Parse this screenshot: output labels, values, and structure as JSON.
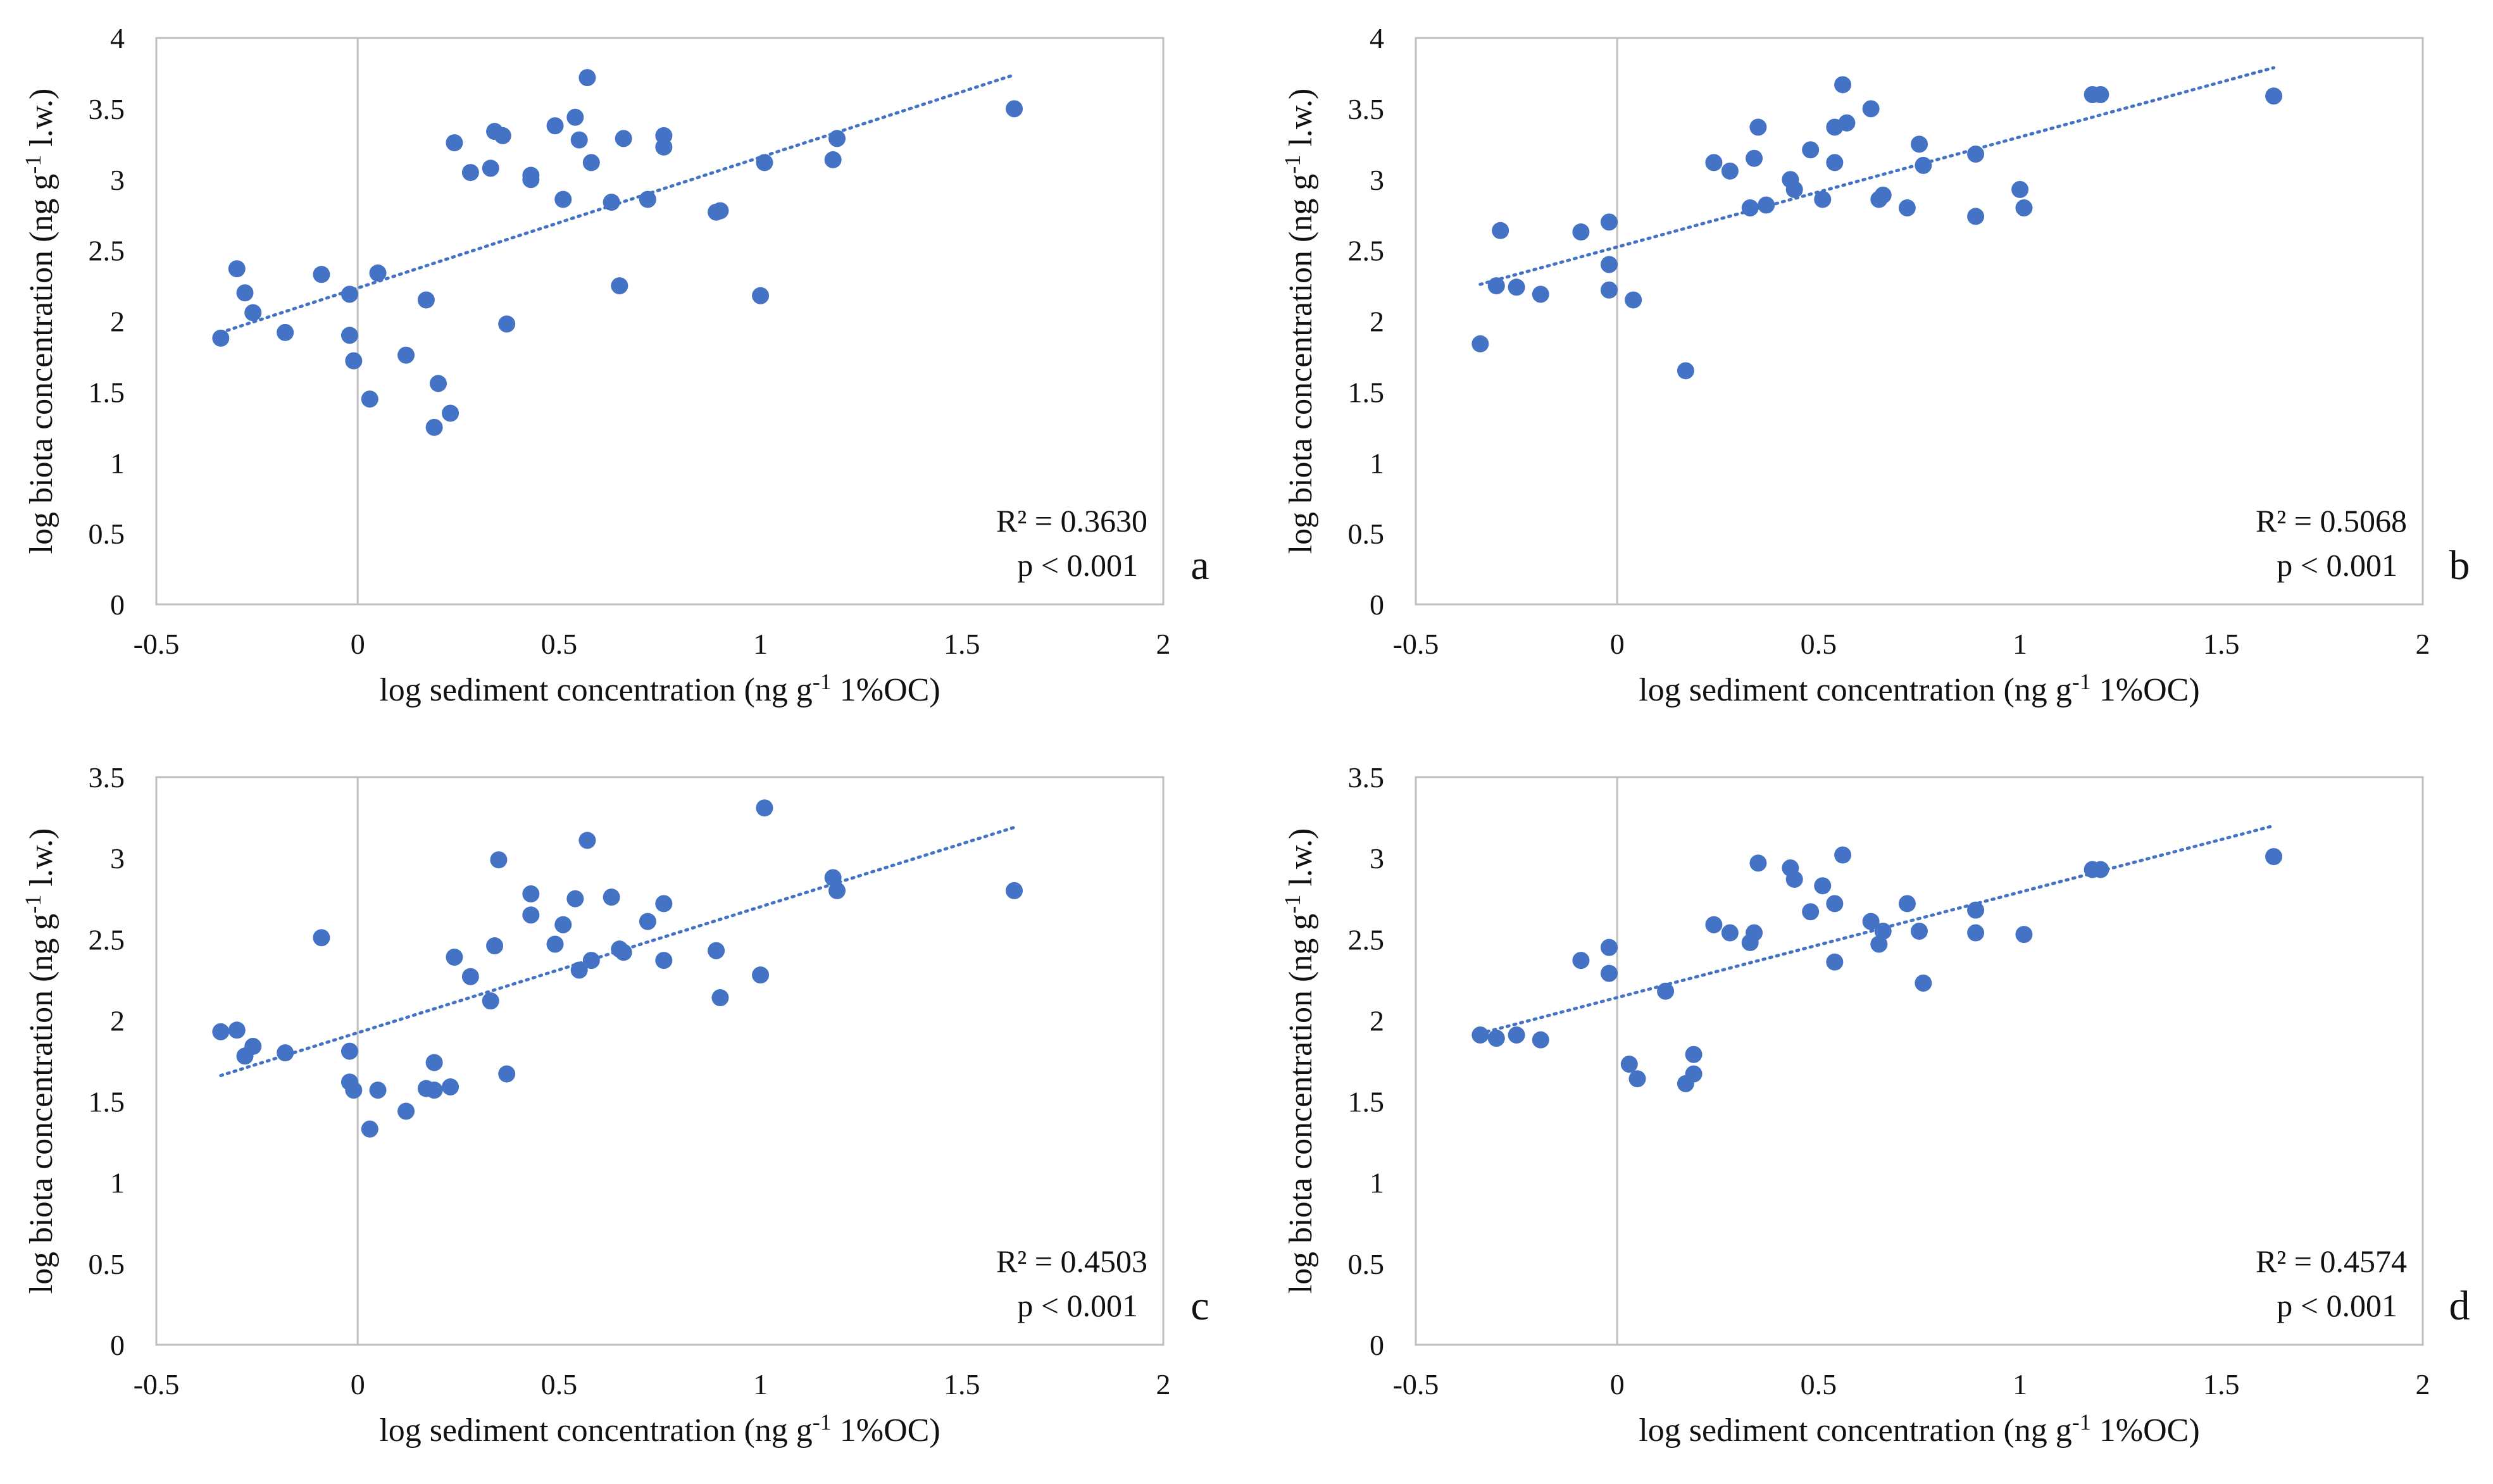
{
  "figure": {
    "marker_color": "#4472C4",
    "trendline_color": "#4472C4",
    "axis_color": "#BFBFBF"
  },
  "chart_data": [
    {
      "type": "scatter",
      "panel_label": "a",
      "xlabel": "log sediment concentration (ng g-1 1%OC)",
      "ylabel": "log biota concentration (ng g-1 l.w.)",
      "xlim": [
        -0.5,
        2
      ],
      "ylim": [
        0,
        4
      ],
      "xticks": [
        -0.5,
        0,
        0.5,
        1,
        1.5,
        2
      ],
      "xtick_labels": [
        "-0.5",
        "0",
        "0.5",
        "1",
        "1.5",
        "2"
      ],
      "yticks": [
        0,
        0.5,
        1,
        1.5,
        2,
        2.5,
        3,
        3.5,
        4
      ],
      "ytick_labels": [
        "0",
        "0.5",
        "1",
        "1.5",
        "2",
        "2.5",
        "3",
        "3.5",
        "4"
      ],
      "r2_text": "R² = 0.3630",
      "p_text": "p < 0.001",
      "trendline": {
        "x": [
          -0.34,
          1.63
        ],
        "y": [
          1.92,
          3.74
        ]
      },
      "points": [
        [
          -0.34,
          1.88
        ],
        [
          -0.3,
          2.37
        ],
        [
          -0.28,
          2.2
        ],
        [
          -0.26,
          2.06
        ],
        [
          -0.18,
          1.92
        ],
        [
          -0.09,
          2.33
        ],
        [
          -0.02,
          2.19
        ],
        [
          -0.02,
          1.9
        ],
        [
          -0.01,
          1.72
        ],
        [
          0.03,
          1.45
        ],
        [
          0.05,
          2.34
        ],
        [
          0.12,
          1.76
        ],
        [
          0.17,
          2.15
        ],
        [
          0.19,
          1.25
        ],
        [
          0.2,
          1.56
        ],
        [
          0.23,
          1.35
        ],
        [
          0.24,
          3.26
        ],
        [
          0.28,
          3.05
        ],
        [
          0.33,
          3.08
        ],
        [
          0.34,
          3.34
        ],
        [
          0.36,
          3.31
        ],
        [
          0.37,
          1.98
        ],
        [
          0.43,
          3.03
        ],
        [
          0.43,
          3.0
        ],
        [
          0.49,
          3.38
        ],
        [
          0.51,
          2.86
        ],
        [
          0.54,
          3.44
        ],
        [
          0.55,
          3.28
        ],
        [
          0.57,
          3.72
        ],
        [
          0.58,
          3.12
        ],
        [
          0.63,
          2.84
        ],
        [
          0.65,
          2.25
        ],
        [
          0.66,
          3.29
        ],
        [
          0.72,
          2.86
        ],
        [
          0.76,
          3.31
        ],
        [
          0.76,
          3.23
        ],
        [
          0.89,
          2.77
        ],
        [
          0.9,
          2.78
        ],
        [
          1.0,
          2.18
        ],
        [
          1.01,
          3.12
        ],
        [
          1.18,
          3.14
        ],
        [
          1.19,
          3.29
        ],
        [
          1.63,
          3.5
        ]
      ]
    },
    {
      "type": "scatter",
      "panel_label": "b",
      "xlabel": "log sediment concentration (ng g-1 1%OC)",
      "ylabel": "log biota concentration (ng g-1 l.w.)",
      "xlim": [
        -0.5,
        2
      ],
      "ylim": [
        0,
        4
      ],
      "xticks": [
        -0.5,
        0,
        0.5,
        1,
        1.5,
        2
      ],
      "xtick_labels": [
        "-0.5",
        "0",
        "0.5",
        "1",
        "1.5",
        "2"
      ],
      "yticks": [
        0,
        0.5,
        1,
        1.5,
        2,
        2.5,
        3,
        3.5,
        4
      ],
      "ytick_labels": [
        "0",
        "0.5",
        "1",
        "1.5",
        "2",
        "2.5",
        "3",
        "3.5",
        "4"
      ],
      "r2_text": "R² = 0.5068",
      "p_text": "p < 0.001",
      "trendline": {
        "x": [
          -0.34,
          1.63
        ],
        "y": [
          2.26,
          3.79
        ]
      },
      "points": [
        [
          -0.34,
          1.84
        ],
        [
          -0.3,
          2.25
        ],
        [
          -0.29,
          2.64
        ],
        [
          -0.25,
          2.24
        ],
        [
          -0.19,
          2.19
        ],
        [
          -0.09,
          2.63
        ],
        [
          -0.02,
          2.7
        ],
        [
          -0.02,
          2.4
        ],
        [
          -0.02,
          2.22
        ],
        [
          0.04,
          2.15
        ],
        [
          0.17,
          1.65
        ],
        [
          0.24,
          3.12
        ],
        [
          0.28,
          3.06
        ],
        [
          0.33,
          2.8
        ],
        [
          0.34,
          3.15
        ],
        [
          0.35,
          3.37
        ],
        [
          0.37,
          2.82
        ],
        [
          0.43,
          3.0
        ],
        [
          0.44,
          2.93
        ],
        [
          0.48,
          3.21
        ],
        [
          0.51,
          2.86
        ],
        [
          0.54,
          3.37
        ],
        [
          0.54,
          3.12
        ],
        [
          0.56,
          3.67
        ],
        [
          0.57,
          3.4
        ],
        [
          0.63,
          3.5
        ],
        [
          0.65,
          2.86
        ],
        [
          0.66,
          2.89
        ],
        [
          0.72,
          2.8
        ],
        [
          0.75,
          3.25
        ],
        [
          0.76,
          3.1
        ],
        [
          0.89,
          3.18
        ],
        [
          0.89,
          2.74
        ],
        [
          1.0,
          2.93
        ],
        [
          1.01,
          2.8
        ],
        [
          1.18,
          3.6
        ],
        [
          1.2,
          3.6
        ],
        [
          1.63,
          3.59
        ]
      ]
    },
    {
      "type": "scatter",
      "panel_label": "c",
      "xlabel": "log sediment concentration (ng g-1 1%OC)",
      "ylabel": "log biota concentration (ng g-1 l.w.)",
      "xlim": [
        -0.5,
        2
      ],
      "ylim": [
        0,
        3.5
      ],
      "xticks": [
        -0.5,
        0,
        0.5,
        1,
        1.5,
        2
      ],
      "xtick_labels": [
        "-0.5",
        "0",
        "0.5",
        "1",
        "1.5",
        "2"
      ],
      "yticks": [
        0,
        0.5,
        1,
        1.5,
        2,
        2.5,
        3,
        3.5
      ],
      "ytick_labels": [
        "0",
        "0.5",
        "1",
        "1.5",
        "2",
        "2.5",
        "3",
        "3.5"
      ],
      "r2_text": "R² = 0.4503",
      "p_text": "p < 0.001",
      "trendline": {
        "x": [
          -0.34,
          1.63
        ],
        "y": [
          1.66,
          3.19
        ]
      },
      "points": [
        [
          -0.34,
          1.93
        ],
        [
          -0.3,
          1.94
        ],
        [
          -0.28,
          1.78
        ],
        [
          -0.26,
          1.84
        ],
        [
          -0.18,
          1.8
        ],
        [
          -0.09,
          2.51
        ],
        [
          -0.02,
          1.81
        ],
        [
          -0.02,
          1.62
        ],
        [
          -0.01,
          1.57
        ],
        [
          0.03,
          1.33
        ],
        [
          0.05,
          1.57
        ],
        [
          0.12,
          1.44
        ],
        [
          0.17,
          1.58
        ],
        [
          0.19,
          1.57
        ],
        [
          0.19,
          1.74
        ],
        [
          0.23,
          1.59
        ],
        [
          0.24,
          2.39
        ],
        [
          0.28,
          2.27
        ],
        [
          0.33,
          2.12
        ],
        [
          0.34,
          2.46
        ],
        [
          0.35,
          2.99
        ],
        [
          0.37,
          1.67
        ],
        [
          0.43,
          2.78
        ],
        [
          0.43,
          2.65
        ],
        [
          0.49,
          2.47
        ],
        [
          0.51,
          2.59
        ],
        [
          0.54,
          2.75
        ],
        [
          0.55,
          2.31
        ],
        [
          0.57,
          3.11
        ],
        [
          0.58,
          2.37
        ],
        [
          0.63,
          2.76
        ],
        [
          0.65,
          2.44
        ],
        [
          0.66,
          2.42
        ],
        [
          0.72,
          2.61
        ],
        [
          0.76,
          2.72
        ],
        [
          0.76,
          2.37
        ],
        [
          0.89,
          2.43
        ],
        [
          0.9,
          2.14
        ],
        [
          1.0,
          2.28
        ],
        [
          1.01,
          3.31
        ],
        [
          1.18,
          2.88
        ],
        [
          1.19,
          2.8
        ],
        [
          1.63,
          2.8
        ]
      ]
    },
    {
      "type": "scatter",
      "panel_label": "d",
      "xlabel": "log sediment concentration (ng g-1 1%OC)",
      "ylabel": "log biota concentration (ng g-1 l.w.)",
      "xlim": [
        -0.5,
        2
      ],
      "ylim": [
        0,
        3.5
      ],
      "xticks": [
        -0.5,
        0,
        0.5,
        1,
        1.5,
        2
      ],
      "xtick_labels": [
        "-0.5",
        "0",
        "0.5",
        "1",
        "1.5",
        "2"
      ],
      "yticks": [
        0,
        0.5,
        1,
        1.5,
        2,
        2.5,
        3,
        3.5
      ],
      "ytick_labels": [
        "0",
        "0.5",
        "1",
        "1.5",
        "2",
        "2.5",
        "3",
        "3.5"
      ],
      "r2_text": "R² = 0.4574",
      "p_text": "p < 0.001",
      "trendline": {
        "x": [
          -0.34,
          1.63
        ],
        "y": [
          1.92,
          3.2
        ]
      },
      "points": [
        [
          -0.34,
          1.91
        ],
        [
          -0.3,
          1.89
        ],
        [
          -0.25,
          1.91
        ],
        [
          -0.19,
          1.88
        ],
        [
          -0.09,
          2.37
        ],
        [
          -0.02,
          2.45
        ],
        [
          -0.02,
          2.29
        ],
        [
          0.03,
          1.73
        ],
        [
          0.05,
          1.64
        ],
        [
          0.12,
          2.18
        ],
        [
          0.17,
          1.61
        ],
        [
          0.19,
          1.67
        ],
        [
          0.19,
          1.79
        ],
        [
          0.24,
          2.59
        ],
        [
          0.28,
          2.54
        ],
        [
          0.33,
          2.48
        ],
        [
          0.34,
          2.54
        ],
        [
          0.35,
          2.97
        ],
        [
          0.43,
          2.94
        ],
        [
          0.44,
          2.87
        ],
        [
          0.48,
          2.67
        ],
        [
          0.51,
          2.83
        ],
        [
          0.54,
          2.72
        ],
        [
          0.54,
          2.36
        ],
        [
          0.56,
          3.02
        ],
        [
          0.63,
          2.61
        ],
        [
          0.65,
          2.47
        ],
        [
          0.66,
          2.55
        ],
        [
          0.72,
          2.72
        ],
        [
          0.75,
          2.55
        ],
        [
          0.76,
          2.23
        ],
        [
          0.89,
          2.68
        ],
        [
          0.89,
          2.54
        ],
        [
          1.01,
          2.53
        ],
        [
          1.18,
          2.93
        ],
        [
          1.2,
          2.93
        ],
        [
          1.63,
          3.01
        ]
      ]
    }
  ]
}
